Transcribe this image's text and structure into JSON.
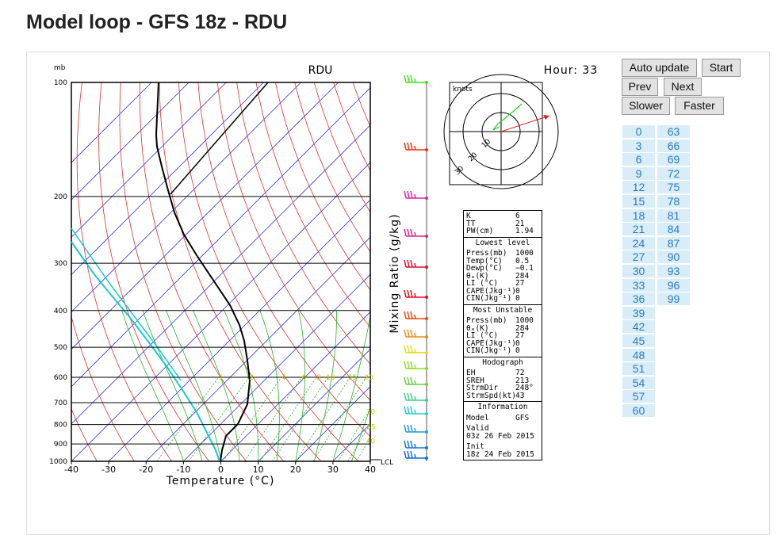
{
  "header": {
    "title": "Model loop - GFS 18z - RDU"
  },
  "buttons": [
    "Auto update",
    "Start",
    "Prev",
    "Next",
    "Slower",
    "Faster"
  ],
  "hours": {
    "column_1": [
      0,
      3,
      6,
      9,
      12,
      15,
      18,
      21,
      24,
      27,
      30,
      33,
      36,
      39,
      42,
      45,
      48,
      51,
      54,
      57,
      60
    ],
    "column_2": [
      63,
      66,
      69,
      72,
      75,
      78,
      81,
      84,
      87,
      90,
      93,
      96,
      99
    ]
  },
  "skewt": {
    "station": "RDU",
    "hour_label": "Hour: 33",
    "pressure_unit": "mb",
    "pressure_levels": [
      100,
      200,
      300,
      400,
      500,
      600,
      700,
      800,
      900,
      1000
    ],
    "temperatures": [
      -40,
      -30,
      -20,
      -10,
      0,
      10,
      20,
      30,
      40
    ],
    "x_label": "Temperature (°C)",
    "mixing_ratio_label": "Mixing Ratio (g/kg)",
    "mixing_ratios": [
      1,
      2,
      4,
      6,
      8,
      10,
      15,
      20,
      30,
      35,
      40
    ],
    "lcl_label": "LCL",
    "hodograph": {
      "unit": "knots",
      "rings": [
        10,
        20,
        30
      ]
    }
  },
  "indices": {
    "sections": [
      {
        "rows": [
          [
            "K",
            "6"
          ],
          [
            "TT",
            "21"
          ],
          [
            "PW(cm)",
            "1.94"
          ]
        ]
      },
      {
        "title": "Lowest level",
        "rows": [
          [
            "Press(mb)",
            "1000"
          ],
          [
            "Temp(°C)",
            "0.5"
          ],
          [
            "Dewp(°C)",
            "−0.1"
          ],
          [
            "θₑ(K)",
            "284"
          ],
          [
            "LI (°C)",
            "27"
          ],
          [
            "CAPE(Jkg⁻¹)",
            "0"
          ],
          [
            "CIN(Jkg⁻¹)",
            "0"
          ]
        ]
      },
      {
        "title": "Most Unstable",
        "rows": [
          [
            "Press(mb)",
            "1000"
          ],
          [
            "θₑ(K)",
            "284"
          ],
          [
            "LI (°C)",
            "27"
          ],
          [
            "CAPE(Jkg⁻¹)",
            "0"
          ],
          [
            "CIN(Jkg⁻¹)",
            "0"
          ]
        ]
      },
      {
        "title": "Hodograph",
        "rows": [
          [
            "EH",
            "72"
          ],
          [
            "SREH",
            "213"
          ],
          [
            "StrmDir",
            "248°"
          ],
          [
            "StrmSpd(kt)",
            "43"
          ]
        ]
      },
      {
        "title": "Information",
        "rows": [
          [
            "Model",
            "GFS"
          ],
          [
            "Valid",
            "03z 26 Feb 2015"
          ],
          [
            "Init",
            "18z 24 Feb 2015"
          ]
        ]
      }
    ]
  }
}
